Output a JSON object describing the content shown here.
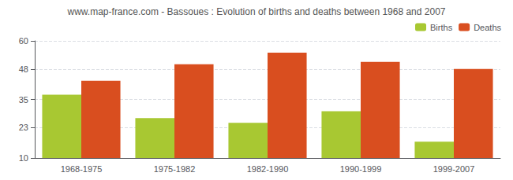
{
  "chart_data": {
    "type": "bar",
    "title": "www.map-france.com - Bassoues : Evolution of births and deaths between 1968 and 2007",
    "categories": [
      "1968-1975",
      "1975-1982",
      "1982-1990",
      "1990-1999",
      "1999-2007"
    ],
    "series": [
      {
        "name": "Births",
        "color": "#a8c832",
        "values": [
          37,
          27,
          25,
          30,
          17
        ]
      },
      {
        "name": "Deaths",
        "color": "#d94e1f",
        "values": [
          43,
          50,
          55,
          51,
          48
        ]
      }
    ],
    "ylim": [
      10,
      60
    ],
    "yticks": [
      10,
      23,
      35,
      48,
      60
    ],
    "grid": true,
    "legend": "upper right"
  }
}
